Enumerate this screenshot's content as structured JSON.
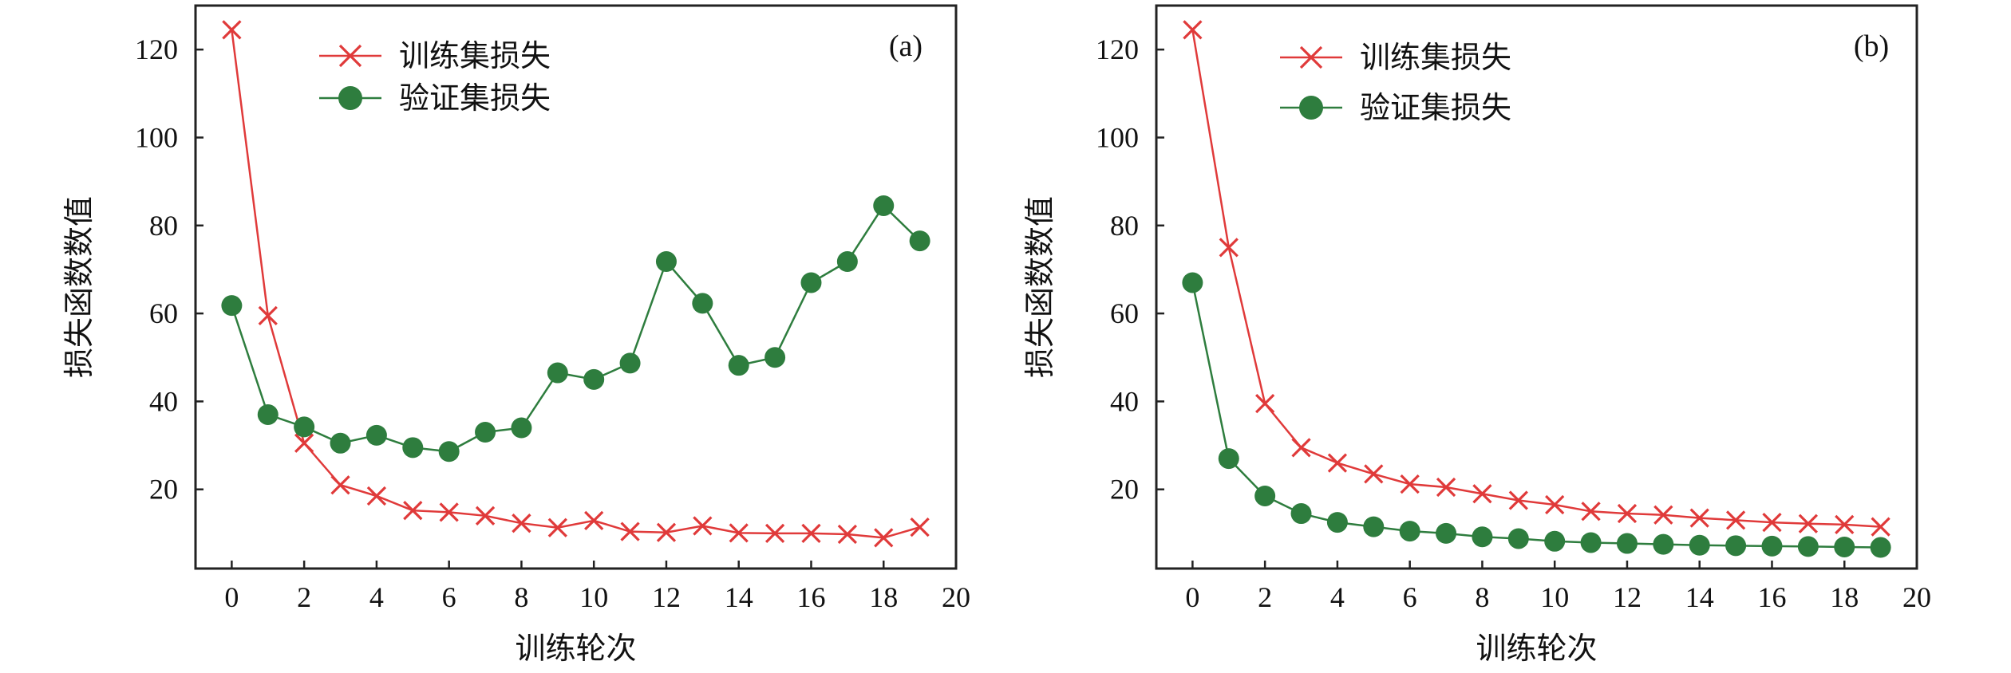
{
  "chart_data": [
    {
      "type": "line",
      "panel_label": "(a)",
      "xlabel": "训练轮次",
      "ylabel": "损失函数数值",
      "xlim": [
        -1,
        20
      ],
      "ylim": [
        2,
        130
      ],
      "xticks": [
        0,
        2,
        4,
        6,
        8,
        10,
        12,
        14,
        16,
        18,
        20
      ],
      "yticks": [
        20,
        40,
        60,
        80,
        100,
        120
      ],
      "legend_position": "top-left",
      "x": [
        0,
        1,
        2,
        3,
        4,
        5,
        6,
        7,
        8,
        9,
        10,
        11,
        12,
        13,
        14,
        15,
        16,
        17,
        18,
        19
      ],
      "series": [
        {
          "name": "训练集损失",
          "marker": "x",
          "color": "#e03a3a",
          "values": [
            124.5,
            59.5,
            30.5,
            21.0,
            18.5,
            15.2,
            14.8,
            14.0,
            12.3,
            11.3,
            12.9,
            10.4,
            10.2,
            11.7,
            10.1,
            10.0,
            10.0,
            9.8,
            9.0,
            11.4
          ]
        },
        {
          "name": "验证集损失",
          "marker": "o",
          "color": "#2e7d3e",
          "values": [
            61.8,
            37.0,
            34.2,
            30.5,
            32.3,
            29.5,
            28.6,
            33.0,
            34.0,
            46.5,
            45.0,
            48.7,
            71.8,
            62.3,
            48.2,
            50.0,
            67.0,
            71.8,
            84.5,
            76.5
          ]
        }
      ]
    },
    {
      "type": "line",
      "panel_label": "(b)",
      "xlabel": "训练轮次",
      "ylabel": "损失函数数值",
      "xlim": [
        -1,
        20
      ],
      "ylim": [
        2,
        130
      ],
      "xticks": [
        0,
        2,
        4,
        6,
        8,
        10,
        12,
        14,
        16,
        18,
        20
      ],
      "yticks": [
        20,
        40,
        60,
        80,
        100,
        120
      ],
      "legend_position": "top-left",
      "x": [
        0,
        1,
        2,
        3,
        4,
        5,
        6,
        7,
        8,
        9,
        10,
        11,
        12,
        13,
        14,
        15,
        16,
        17,
        18,
        19
      ],
      "series": [
        {
          "name": "训练集损失",
          "marker": "x",
          "color": "#e03a3a",
          "values": [
            124.5,
            75.0,
            39.5,
            29.5,
            26.0,
            23.5,
            21.2,
            20.5,
            19.0,
            17.5,
            16.5,
            15.0,
            14.5,
            14.2,
            13.5,
            13.0,
            12.5,
            12.2,
            12.0,
            11.5
          ]
        },
        {
          "name": "验证集损失",
          "marker": "o",
          "color": "#2e7d3e",
          "values": [
            67.0,
            27.0,
            18.5,
            14.5,
            12.5,
            11.5,
            10.5,
            10.0,
            9.2,
            8.8,
            8.2,
            7.9,
            7.7,
            7.5,
            7.3,
            7.2,
            7.1,
            7.0,
            6.9,
            6.8
          ]
        }
      ]
    }
  ]
}
